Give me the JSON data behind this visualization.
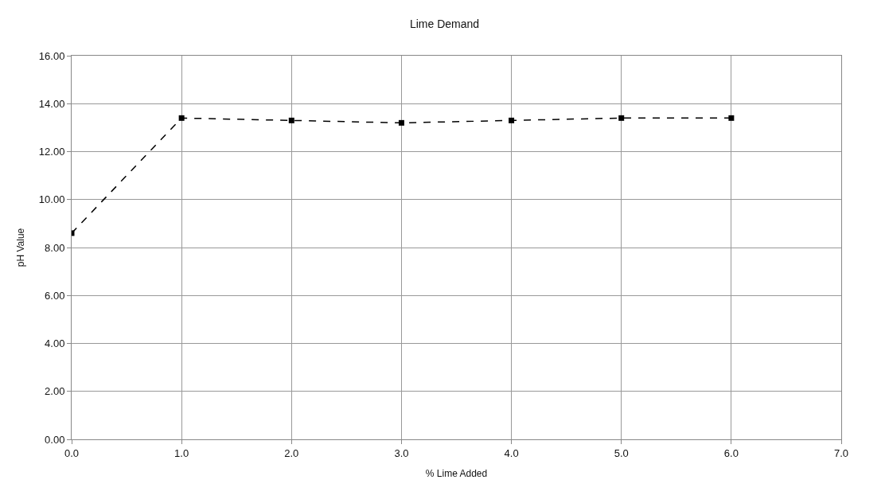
{
  "chart_data": {
    "type": "line",
    "title": "Lime Demand",
    "xlabel": "% Lime Added",
    "ylabel": "pH Value",
    "x": [
      0,
      1,
      2,
      3,
      4,
      5,
      6
    ],
    "series": [
      {
        "color": "#000000",
        "values": [
          8.6,
          13.4,
          13.3,
          13.2,
          13.3,
          13.4,
          13.4
        ]
      }
    ],
    "xlim": [
      0,
      7
    ],
    "xticks": [
      {
        "value": 0,
        "label": "0.0"
      },
      {
        "value": 1,
        "label": "1.0"
      },
      {
        "value": 2,
        "label": "2.0"
      },
      {
        "value": 3,
        "label": "3.0"
      },
      {
        "value": 4,
        "label": "4.0"
      },
      {
        "value": 5,
        "label": "5.0"
      },
      {
        "value": 6,
        "label": "6.0"
      },
      {
        "value": 7,
        "label": "7.0"
      }
    ],
    "ylim": [
      0,
      16
    ],
    "yticks": [
      {
        "value": 0,
        "label": "0.00"
      },
      {
        "value": 2,
        "label": "2.00"
      },
      {
        "value": 4,
        "label": "4.00"
      },
      {
        "value": 6,
        "label": "6.00"
      },
      {
        "value": 8,
        "label": "8.00"
      },
      {
        "value": 10,
        "label": "10.00"
      },
      {
        "value": 12,
        "label": "12.00"
      },
      {
        "value": 14,
        "label": "14.00"
      },
      {
        "value": 16,
        "label": "16.00"
      }
    ],
    "grid": true,
    "marker": "square",
    "line_style": "dashed",
    "legend": false
  }
}
